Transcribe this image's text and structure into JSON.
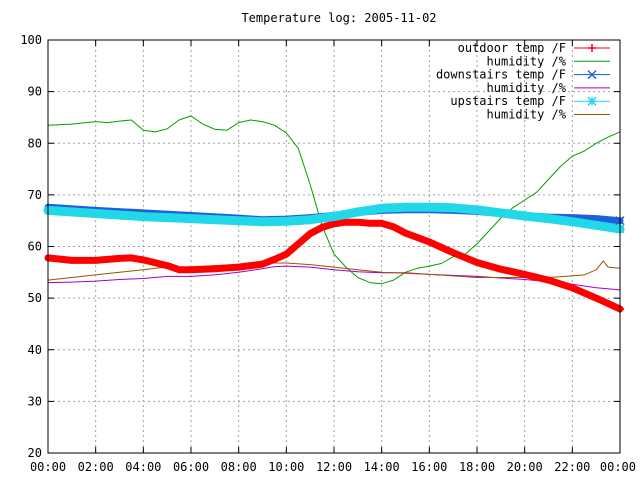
{
  "chart_data": {
    "type": "line",
    "title": "Temperature log: 2005-11-02",
    "xlabel": "",
    "ylabel": "",
    "xlim": [
      0,
      24
    ],
    "ylim": [
      20,
      100
    ],
    "grid": true,
    "legend_position": "top-right",
    "x_ticks": [
      "00:00",
      "02:00",
      "04:00",
      "06:00",
      "08:00",
      "10:00",
      "12:00",
      "14:00",
      "16:00",
      "18:00",
      "20:00",
      "22:00",
      "00:00"
    ],
    "y_ticks": [
      "20",
      "30",
      "40",
      "50",
      "60",
      "70",
      "80",
      "90",
      "100"
    ],
    "series": [
      {
        "name": "outdoor temp /F",
        "color": "#ff0000",
        "marker": "plus",
        "x": [
          0,
          1,
          2,
          3,
          3.5,
          4,
          5,
          5.5,
          6,
          7,
          8,
          9,
          9.5,
          10,
          10.5,
          11,
          11.5,
          12,
          12.5,
          13,
          13.5,
          14,
          14.5,
          15,
          16,
          17,
          18,
          19,
          20,
          21,
          22,
          23,
          24
        ],
        "y": [
          57.8,
          57.3,
          57.3,
          57.7,
          57.8,
          57.4,
          56.3,
          55.5,
          55.5,
          55.7,
          56.0,
          56.6,
          57.5,
          58.5,
          60.5,
          62.5,
          63.7,
          64.4,
          64.7,
          64.7,
          64.5,
          64.5,
          63.8,
          62.6,
          60.9,
          58.8,
          56.9,
          55.6,
          54.6,
          53.5,
          52.0,
          50.0,
          47.9
        ]
      },
      {
        "name": "humidity /%",
        "color": "#00a000",
        "marker": "none",
        "x": [
          0,
          1,
          2,
          2.5,
          3,
          3.5,
          4,
          4.5,
          5,
          5.5,
          6,
          6.5,
          7,
          7.5,
          8,
          8.5,
          9,
          9.5,
          10,
          10.5,
          11,
          11.5,
          12,
          12.5,
          13,
          13.5,
          14,
          14.5,
          15,
          15.5,
          16,
          16.5,
          17,
          17.5,
          18,
          18.5,
          19,
          19.5,
          20,
          20.5,
          21,
          21.5,
          22,
          22.5,
          23,
          23.5,
          24
        ],
        "y": [
          83.5,
          83.7,
          84.2,
          84.0,
          84.3,
          84.5,
          82.5,
          82.2,
          82.8,
          84.5,
          85.3,
          83.7,
          82.7,
          82.5,
          84.0,
          84.5,
          84.2,
          83.5,
          82.0,
          79.0,
          72.0,
          64.0,
          58.5,
          56.0,
          54.0,
          53.0,
          52.8,
          53.5,
          55.0,
          55.8,
          56.2,
          56.7,
          58.0,
          58.5,
          60.5,
          63.0,
          65.5,
          67.5,
          69.0,
          70.5,
          73.0,
          75.5,
          77.5,
          78.5,
          80.0,
          81.2,
          82.2
        ]
      },
      {
        "name": "downstairs temp /F",
        "color": "#1e5fdc",
        "marker": "cross",
        "x": [
          0,
          2,
          4,
          6,
          8,
          9,
          10,
          11,
          12,
          13,
          14,
          15,
          16,
          17,
          18,
          19,
          20,
          21,
          22,
          23,
          24
        ],
        "y": [
          67.6,
          67.0,
          66.5,
          66.0,
          65.5,
          65.2,
          65.3,
          65.6,
          66.0,
          66.6,
          67.0,
          67.1,
          67.1,
          67.0,
          66.8,
          66.4,
          66.0,
          65.7,
          65.6,
          65.4,
          65.0
        ]
      },
      {
        "name": "humidity /%",
        "color": "#a000c8",
        "marker": "none",
        "x": [
          0,
          1,
          2,
          3,
          4,
          5,
          6,
          7,
          8,
          9,
          9.5,
          10,
          11,
          12,
          13,
          14,
          15,
          16,
          17,
          18,
          19,
          20,
          21,
          22,
          23,
          24
        ],
        "y": [
          53.0,
          53.1,
          53.3,
          53.6,
          53.8,
          54.2,
          54.2,
          54.5,
          55.0,
          55.7,
          56.1,
          56.2,
          56.0,
          55.5,
          55.1,
          54.9,
          54.9,
          54.6,
          54.4,
          54.2,
          53.9,
          53.6,
          53.2,
          52.7,
          52.0,
          51.6
        ]
      },
      {
        "name": "upstairs temp /F",
        "color": "#20d8e8",
        "marker": "star",
        "x": [
          0,
          2,
          4,
          6,
          8,
          9,
          10,
          11,
          12,
          13,
          14,
          15,
          16,
          17,
          18,
          19,
          20,
          21,
          22,
          23,
          24
        ],
        "y": [
          67.0,
          66.4,
          65.8,
          65.4,
          65.0,
          64.8,
          64.9,
          65.2,
          65.8,
          66.7,
          67.4,
          67.6,
          67.6,
          67.5,
          67.1,
          66.5,
          65.9,
          65.4,
          64.8,
          64.1,
          63.4
        ]
      },
      {
        "name": "humidity /%",
        "color": "#a05000",
        "marker": "none",
        "x": [
          0,
          1,
          2,
          3,
          4,
          4.5,
          5,
          6,
          7,
          8,
          9,
          10,
          11,
          12,
          13,
          14,
          15,
          16,
          17,
          18,
          19,
          20,
          21,
          22,
          22.5,
          23,
          23.3,
          23.5,
          24
        ],
        "y": [
          53.5,
          54.0,
          54.5,
          55.0,
          55.5,
          55.8,
          56.0,
          56.0,
          56.3,
          56.5,
          56.8,
          56.8,
          56.5,
          56.0,
          55.5,
          55.0,
          54.8,
          54.6,
          54.3,
          54.0,
          54.0,
          54.0,
          54.0,
          54.3,
          54.5,
          55.5,
          57.2,
          56.0,
          55.8
        ]
      }
    ]
  }
}
